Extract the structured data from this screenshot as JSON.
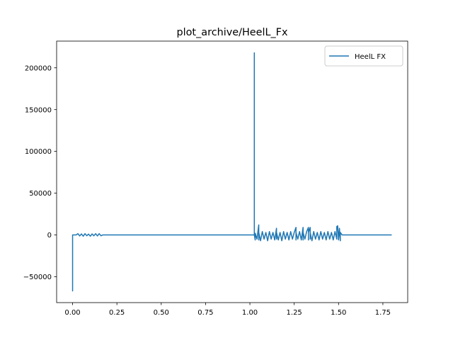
{
  "chart_data": {
    "type": "line",
    "title": "plot_archive/HeelL_Fx",
    "xlabel": "",
    "ylabel": "",
    "xlim": [
      -0.09,
      1.89
    ],
    "ylim": [
      -81000,
      232000
    ],
    "grid": false,
    "legend": {
      "position": "top-right",
      "entries": [
        "HeelL FX"
      ]
    },
    "x_ticks": [
      {
        "value": 0.0,
        "label": "0.00"
      },
      {
        "value": 0.25,
        "label": "0.25"
      },
      {
        "value": 0.5,
        "label": "0.50"
      },
      {
        "value": 0.75,
        "label": "0.75"
      },
      {
        "value": 1.0,
        "label": "1.00"
      },
      {
        "value": 1.25,
        "label": "1.25"
      },
      {
        "value": 1.5,
        "label": "1.50"
      },
      {
        "value": 1.75,
        "label": "1.75"
      }
    ],
    "y_ticks": [
      {
        "value": -50000,
        "label": "−50000"
      },
      {
        "value": 0,
        "label": "0"
      },
      {
        "value": 50000,
        "label": "50000"
      },
      {
        "value": 100000,
        "label": "100000"
      },
      {
        "value": 150000,
        "label": "150000"
      },
      {
        "value": 200000,
        "label": "200000"
      }
    ],
    "series": [
      {
        "name": "HeelL FX",
        "color": "#1f77b4",
        "x": [
          0.0,
          0.0,
          0.0,
          0.02,
          0.03,
          0.04,
          0.05,
          0.06,
          0.07,
          0.08,
          0.09,
          0.1,
          0.11,
          0.12,
          0.13,
          0.14,
          0.15,
          0.16,
          0.17,
          0.2,
          0.5,
          0.8,
          1.0,
          1.02,
          1.025,
          1.025,
          1.025,
          1.03,
          1.03,
          1.04,
          1.05,
          1.05,
          1.05,
          1.06,
          1.07,
          1.08,
          1.09,
          1.1,
          1.11,
          1.12,
          1.13,
          1.14,
          1.15,
          1.15,
          1.15,
          1.16,
          1.17,
          1.18,
          1.19,
          1.2,
          1.21,
          1.22,
          1.23,
          1.24,
          1.25,
          1.26,
          1.26,
          1.26,
          1.27,
          1.28,
          1.29,
          1.3,
          1.3,
          1.3,
          1.31,
          1.32,
          1.33,
          1.33,
          1.33,
          1.34,
          1.34,
          1.34,
          1.35,
          1.36,
          1.37,
          1.38,
          1.39,
          1.4,
          1.41,
          1.42,
          1.43,
          1.44,
          1.45,
          1.46,
          1.47,
          1.48,
          1.49,
          1.49,
          1.495,
          1.5,
          1.505,
          1.51,
          1.51,
          1.52,
          1.6,
          1.8
        ],
        "y": [
          0,
          -67000,
          0,
          0,
          1500,
          -1200,
          1200,
          -1500,
          1500,
          -1000,
          1000,
          -1500,
          1200,
          -1000,
          1500,
          -1200,
          1500,
          -1000,
          0,
          0,
          0,
          0,
          0,
          0,
          0,
          218000,
          0,
          -6000,
          2000,
          -5000,
          12000,
          -6000,
          3000,
          -7000,
          4000,
          -5000,
          3000,
          -7000,
          4000,
          -5000,
          3000,
          -6000,
          8000,
          -5000,
          3000,
          -6000,
          3000,
          -7000,
          4000,
          -5000,
          3000,
          -6000,
          4000,
          -5000,
          3000,
          9000,
          -6000,
          3000,
          -5000,
          4000,
          -6000,
          9000,
          -6000,
          3000,
          -5000,
          4000,
          9000,
          -6000,
          3000,
          9000,
          -5000,
          3000,
          -7000,
          4000,
          -5000,
          3000,
          -6000,
          4000,
          -5000,
          3000,
          -6000,
          4000,
          -5000,
          3000,
          -6000,
          4000,
          -5000,
          10000,
          11000,
          -6000,
          8000,
          -7000,
          3000,
          0,
          0,
          0
        ]
      }
    ]
  }
}
